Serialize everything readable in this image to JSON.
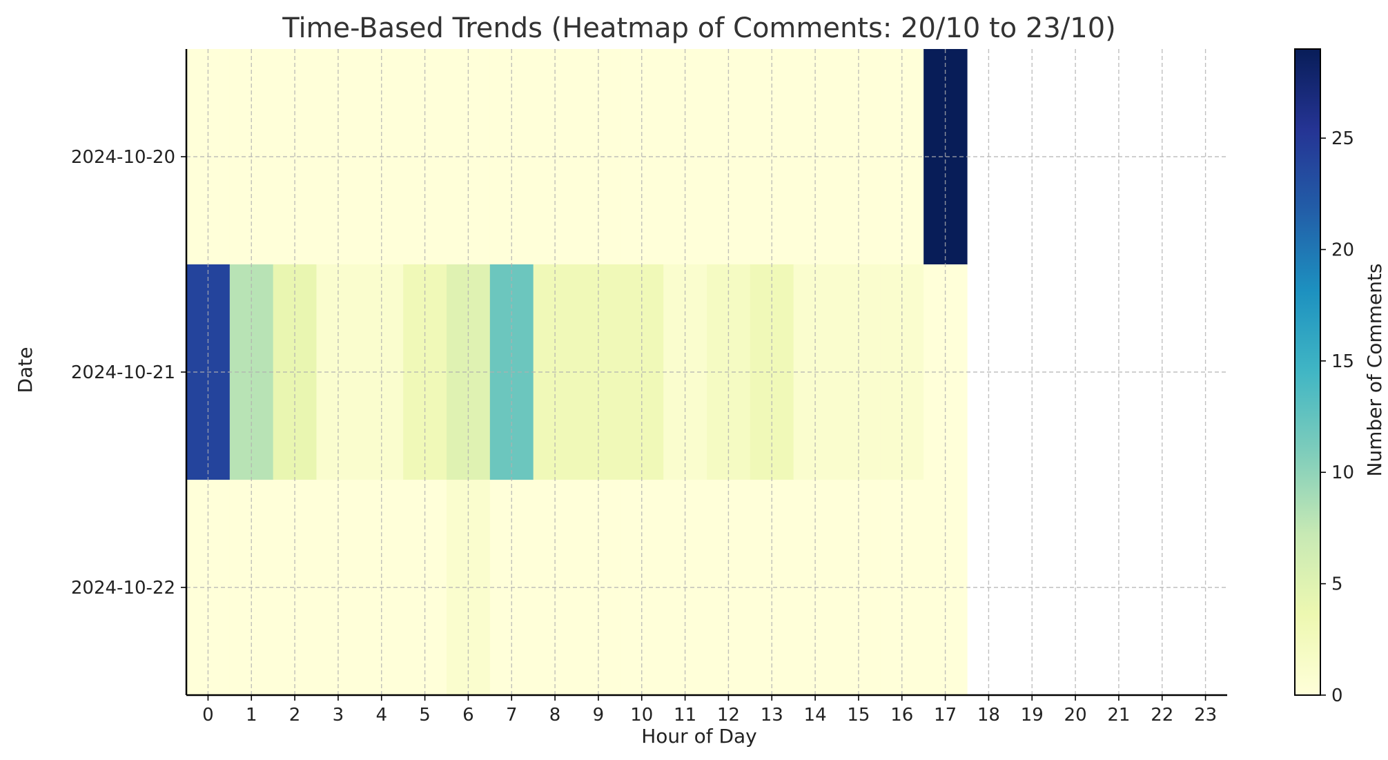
{
  "chart_data": {
    "type": "heatmap",
    "title": "Time-Based Trends (Heatmap of Comments: 20/10 to 23/10)",
    "xlabel": "Hour of Day",
    "ylabel": "Date",
    "colorbar_label": "Number of Comments",
    "x": [
      "0",
      "1",
      "2",
      "3",
      "4",
      "5",
      "6",
      "7",
      "8",
      "9",
      "10",
      "11",
      "12",
      "13",
      "14",
      "15",
      "16",
      "17",
      "18",
      "19",
      "20",
      "21",
      "22",
      "23"
    ],
    "y": [
      "2024-10-20",
      "2024-10-21",
      "2024-10-22"
    ],
    "values": [
      [
        0,
        0,
        0,
        0,
        0,
        0,
        0,
        0,
        0,
        0,
        0,
        0,
        0,
        0,
        0,
        0,
        0,
        29,
        null,
        null,
        null,
        null,
        null,
        null
      ],
      [
        24,
        8,
        4,
        1,
        1,
        3,
        5,
        12,
        3,
        3,
        3,
        1,
        2,
        3,
        1,
        1,
        1,
        0,
        null,
        null,
        null,
        null,
        null,
        null
      ],
      [
        0,
        0,
        0,
        0,
        0,
        0,
        1,
        0,
        0,
        0,
        0,
        0,
        0,
        0,
        0,
        0,
        0,
        0,
        null,
        null,
        null,
        null,
        null,
        null
      ]
    ],
    "colorbar_ticks": [
      "0",
      "5",
      "10",
      "15",
      "20",
      "25"
    ],
    "colorbar_range": [
      0,
      29
    ],
    "colormap": "YlGnBu",
    "colormap_stops": [
      "#ffffd9",
      "#edf8b1",
      "#c7e9b4",
      "#7fcdbb",
      "#41b6c4",
      "#1d91c0",
      "#225ea8",
      "#253494",
      "#081d58"
    ],
    "grid": true
  }
}
